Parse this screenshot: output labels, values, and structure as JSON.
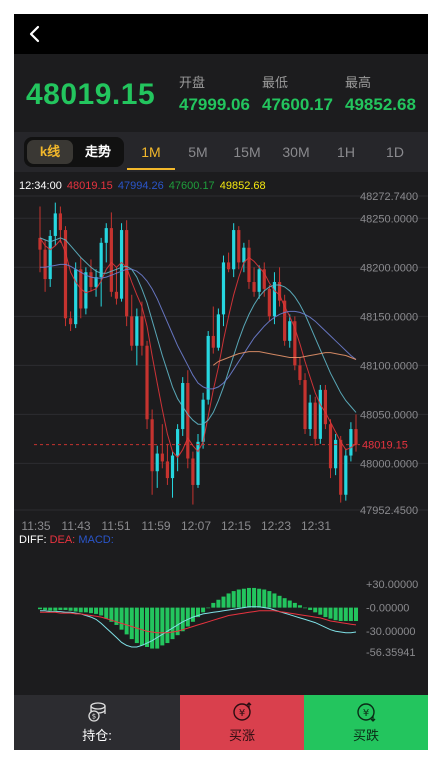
{
  "header": {
    "back_icon": "chevron-left-icon"
  },
  "quote": {
    "price": "48019.15",
    "stats": [
      {
        "label": "开盘",
        "value": "47999.06"
      },
      {
        "label": "最低",
        "value": "47600.17"
      },
      {
        "label": "最高",
        "value": "49852.68"
      }
    ]
  },
  "tabs": {
    "modes": [
      "k线",
      "走势"
    ],
    "active_mode": "k线",
    "intervals": [
      "1M",
      "5M",
      "15M",
      "30M",
      "1H",
      "1D"
    ],
    "active_interval": "1M"
  },
  "legend": {
    "time": "12:34:00",
    "values": [
      {
        "text": "48019.15",
        "color": "#e8333f"
      },
      {
        "text": "47994.26",
        "color": "#2a55c9"
      },
      {
        "text": "47600.17",
        "color": "#1f9e3c"
      },
      {
        "text": "49852.68",
        "color": "#f5e90f"
      }
    ]
  },
  "macd_legend": [
    {
      "text": "DIFF:",
      "color": "#ffffff"
    },
    {
      "text": "DEA:",
      "color": "#e8333f"
    },
    {
      "text": "MACD:",
      "color": "#2a55c9"
    }
  ],
  "chart_data": {
    "type": "candlestick",
    "x_ticks": [
      "11:35",
      "11:43",
      "11:51",
      "11:59",
      "12:07",
      "12:15",
      "12:23",
      "12:31"
    ],
    "y_ticks": [
      "48272.7400",
      "48250.0000",
      "48200.0000",
      "48150.0000",
      "48100.0000",
      "48050.0000",
      "48000.0000",
      "47952.4500"
    ],
    "y_range": [
      47952.45,
      48272.74
    ],
    "current_price_label": "48019.15",
    "current_price": 48019.15,
    "macd_ticks": [
      "+30.00000",
      "-0.00000",
      "-30.00000",
      "-56.35941"
    ],
    "macd_range": [
      -56.35941,
      30
    ],
    "up_color": "#26d7e0",
    "down_color": "#c5332f",
    "candles": [
      [
        48230,
        48262,
        48195,
        48218
      ],
      [
        48218,
        48228,
        48175,
        48188
      ],
      [
        48188,
        48238,
        48180,
        48232
      ],
      [
        48232,
        48266,
        48222,
        48255
      ],
      [
        48255,
        48262,
        48225,
        48238
      ],
      [
        48238,
        48242,
        48140,
        48148
      ],
      [
        48148,
        48155,
        48135,
        48142
      ],
      [
        48142,
        48205,
        48138,
        48198
      ],
      [
        48198,
        48210,
        48148,
        48158
      ],
      [
        48158,
        48200,
        48152,
        48195
      ],
      [
        48195,
        48208,
        48175,
        48180
      ],
      [
        48180,
        48198,
        48170,
        48190
      ],
      [
        48190,
        48230,
        48160,
        48225
      ],
      [
        48225,
        48245,
        48205,
        48240
      ],
      [
        48240,
        48256,
        48170,
        48175
      ],
      [
        48175,
        48200,
        48162,
        48168
      ],
      [
        48168,
        48245,
        48165,
        48238
      ],
      [
        48238,
        48248,
        48140,
        48150
      ],
      [
        48150,
        48172,
        48115,
        48120
      ],
      [
        48120,
        48158,
        48100,
        48150
      ],
      [
        48150,
        48165,
        48110,
        48120
      ],
      [
        48120,
        48125,
        48035,
        48045
      ],
      [
        48045,
        48055,
        47968,
        47992
      ],
      [
        47992,
        48018,
        47975,
        48010
      ],
      [
        48010,
        48040,
        47995,
        48002
      ],
      [
        48002,
        48020,
        47978,
        47985
      ],
      [
        47985,
        48012,
        47965,
        48008
      ],
      [
        48008,
        48040,
        47992,
        48035
      ],
      [
        48035,
        48088,
        48028,
        48082
      ],
      [
        48082,
        48095,
        47995,
        48005
      ],
      [
        48005,
        48012,
        47958,
        47978
      ],
      [
        47978,
        48030,
        47975,
        48022
      ],
      [
        48022,
        48072,
        48015,
        48065
      ],
      [
        48065,
        48135,
        48060,
        48130
      ],
      [
        48130,
        48160,
        48112,
        48118
      ],
      [
        48118,
        48158,
        48115,
        48152
      ],
      [
        48152,
        48212,
        48140,
        48205
      ],
      [
        48205,
        48215,
        48195,
        48198
      ],
      [
        48198,
        48245,
        48190,
        48238
      ],
      [
        48238,
        48242,
        48198,
        48205
      ],
      [
        48205,
        48225,
        48195,
        48220
      ],
      [
        48220,
        48228,
        48178,
        48185
      ],
      [
        48185,
        48200,
        48170,
        48175
      ],
      [
        48175,
        48202,
        48168,
        48198
      ],
      [
        48198,
        48205,
        48170,
        48178
      ],
      [
        48178,
        48182,
        48145,
        48150
      ],
      [
        48150,
        48195,
        48142,
        48185
      ],
      [
        48185,
        48200,
        48160,
        48166
      ],
      [
        48166,
        48172,
        48120,
        48125
      ],
      [
        48125,
        48152,
        48118,
        48145
      ],
      [
        48145,
        48150,
        48095,
        48100
      ],
      [
        48100,
        48108,
        48080,
        48085
      ],
      [
        48085,
        48092,
        48030,
        48035
      ],
      [
        48035,
        48070,
        48028,
        48062
      ],
      [
        48062,
        48068,
        48018,
        48025
      ],
      [
        48025,
        48080,
        48020,
        48075
      ],
      [
        48075,
        48080,
        48035,
        48040
      ],
      [
        48040,
        48045,
        47985,
        47995
      ],
      [
        47995,
        48030,
        47988,
        48024
      ],
      [
        48024,
        48028,
        47960,
        47968
      ],
      [
        47968,
        48015,
        47962,
        48008
      ],
      [
        48008,
        48042,
        48002,
        48035
      ],
      [
        48035,
        48050,
        48012,
        48019
      ]
    ],
    "ma_lines": [
      {
        "color": "#e0353a",
        "values": [
          48230,
          48222,
          48218,
          48222,
          48228,
          48215,
          48195,
          48185,
          48178,
          48174,
          48176,
          48178,
          48186,
          48198,
          48205,
          48200,
          48205,
          48200,
          48185,
          48172,
          48160,
          48140,
          48110,
          48082,
          48055,
          48030,
          48012,
          48006,
          48014,
          48026,
          48018,
          48012,
          48022,
          48048,
          48075,
          48098,
          48126,
          48150,
          48172,
          48190,
          48205,
          48210,
          48206,
          48200,
          48194,
          48184,
          48176,
          48172,
          48160,
          48150,
          48138,
          48122,
          48104,
          48088,
          48072,
          48060,
          48052,
          48042,
          48032,
          48022,
          48014,
          48016,
          48020
        ]
      },
      {
        "color": "#5fb6c6",
        "values": [
          48230,
          48228,
          48226,
          48228,
          48230,
          48228,
          48222,
          48216,
          48210,
          48205,
          48200,
          48196,
          48194,
          48194,
          48196,
          48198,
          48200,
          48201,
          48198,
          48190,
          48178,
          48164,
          48146,
          48128,
          48110,
          48094,
          48078,
          48066,
          48058,
          48050,
          48044,
          48040,
          48040,
          48044,
          48052,
          48064,
          48078,
          48094,
          48110,
          48126,
          48140,
          48152,
          48162,
          48170,
          48176,
          48180,
          48182,
          48182,
          48180,
          48176,
          48170,
          48162,
          48152,
          48140,
          48128,
          48116,
          48104,
          48092,
          48082,
          48072,
          48064,
          48058,
          48052
        ]
      },
      {
        "color": "#6e7ed0",
        "values": [
          48200,
          48200,
          48201,
          48202,
          48203,
          48203,
          48201,
          48198,
          48195,
          48192,
          48190,
          48189,
          48189,
          48190,
          48192,
          48194,
          48196,
          48198,
          48198,
          48196,
          48192,
          48186,
          48178,
          48168,
          48156,
          48144,
          48132,
          48120,
          48110,
          48100,
          48090,
          48082,
          48078,
          48076,
          48076,
          48078,
          48082,
          48088,
          48096,
          48104,
          48112,
          48120,
          48128,
          48134,
          48140,
          48145,
          48149,
          48152,
          48154,
          48155,
          48155,
          48154,
          48152,
          48149,
          48145,
          48140,
          48135,
          48130,
          48125,
          48120,
          48115,
          48110,
          48106
        ]
      },
      {
        "color": "#e6936a",
        "values": [
          null,
          null,
          null,
          null,
          null,
          null,
          null,
          null,
          null,
          null,
          null,
          null,
          null,
          null,
          null,
          null,
          null,
          null,
          null,
          null,
          null,
          null,
          null,
          null,
          null,
          null,
          null,
          null,
          null,
          null,
          null,
          null,
          null,
          null,
          48100,
          48104,
          48106,
          48108,
          48110,
          48112,
          48113,
          48114,
          48114,
          48114,
          48113,
          48112,
          48111,
          48110,
          48109,
          48108,
          48108,
          48108,
          48109,
          48110,
          48111,
          48112,
          48113,
          48113,
          48112,
          48111,
          48110,
          48108,
          48106
        ]
      }
    ],
    "macd_hist": [
      -2,
      -3,
      -4,
      -4,
      -3,
      -3,
      -4,
      -5,
      -6,
      -6,
      -7,
      -8,
      -10,
      -14,
      -18,
      -22,
      -28,
      -34,
      -40,
      -45,
      -48,
      -50,
      -52,
      -52,
      -48,
      -45,
      -40,
      -35,
      -30,
      -24,
      -18,
      -12,
      -6,
      0,
      6,
      10,
      14,
      18,
      21,
      23,
      24,
      25,
      25,
      24,
      23,
      21,
      18,
      15,
      12,
      9,
      6,
      3,
      0,
      -3,
      -6,
      -9,
      -12,
      -14,
      -16,
      -17,
      -17,
      -17,
      -17
    ],
    "macd_diff": [
      -4,
      -4,
      -5,
      -5,
      -5,
      -6,
      -6,
      -7,
      -8,
      -10,
      -12,
      -15,
      -20,
      -26,
      -32,
      -38,
      -44,
      -48,
      -50,
      -50,
      -48,
      -45,
      -42,
      -38,
      -34,
      -30,
      -26,
      -22,
      -18,
      -15,
      -12,
      -10,
      -8,
      -7,
      -6,
      -5,
      -4,
      -3,
      -2,
      -1,
      0,
      1,
      1,
      1,
      0,
      -1,
      -3,
      -5,
      -7,
      -9,
      -11,
      -13,
      -15,
      -17,
      -19,
      -22,
      -25,
      -28,
      -30,
      -31,
      -32,
      -32,
      -31
    ],
    "macd_dea": [
      -6,
      -6,
      -6,
      -6,
      -7,
      -7,
      -7,
      -8,
      -8,
      -9,
      -10,
      -11,
      -12,
      -14,
      -16,
      -18,
      -20,
      -22,
      -24,
      -26,
      -28,
      -30,
      -31,
      -32,
      -32,
      -32,
      -31,
      -30,
      -28,
      -26,
      -24,
      -22,
      -20,
      -18,
      -16,
      -14,
      -12,
      -10,
      -9,
      -8,
      -7,
      -6,
      -5,
      -4,
      -4,
      -4,
      -4,
      -5,
      -6,
      -7,
      -8,
      -9,
      -10,
      -11,
      -12,
      -13,
      -15,
      -17,
      -18,
      -19,
      -20,
      -21,
      -22
    ]
  },
  "bottom": {
    "position_label": "持仓:",
    "buy_up_label": "买涨",
    "buy_down_label": "买跌",
    "position_icon": "coins-icon",
    "buy_up_icon": "yen-up-icon",
    "buy_down_icon": "yen-down-icon"
  }
}
